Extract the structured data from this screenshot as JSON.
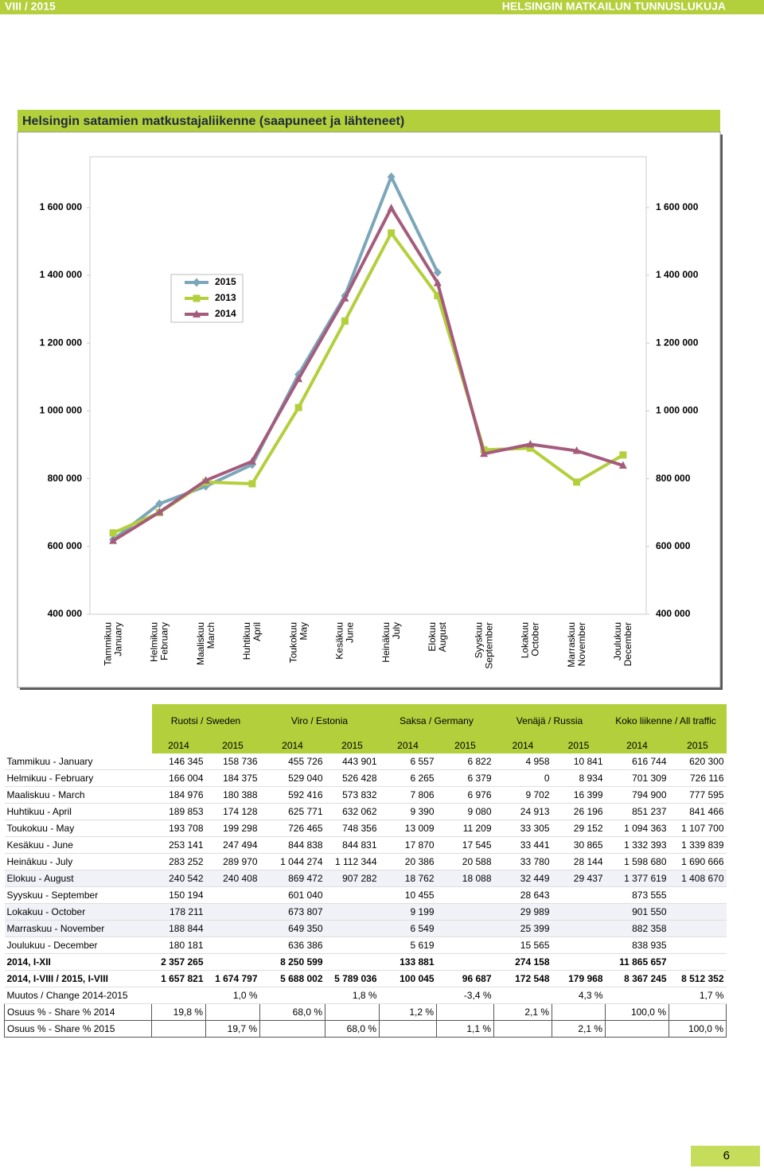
{
  "header": {
    "left": "VIII / 2015",
    "right": "HELSINGIN MATKAILUN TUNNUSLUKUJA"
  },
  "section_title": "Helsingin satamien matkustajaliikenne (saapuneet ja lähteneet)",
  "chart_data": {
    "type": "line",
    "categories": [
      [
        "Tammikuu",
        "January"
      ],
      [
        "Helmikuu",
        "February"
      ],
      [
        "Maaliskuu",
        "March"
      ],
      [
        "Huhtikuu",
        "April"
      ],
      [
        "Toukokuu",
        "May"
      ],
      [
        "Kesäkuu",
        "June"
      ],
      [
        "Heinäkuu",
        "July"
      ],
      [
        "Elokuu",
        "August"
      ],
      [
        "Syyskuu",
        "September"
      ],
      [
        "Lokakuu",
        "October"
      ],
      [
        "Marraskuu",
        "November"
      ],
      [
        "Joulukuu",
        "December"
      ]
    ],
    "series": [
      {
        "name": "2015",
        "color": "#7ba7b9",
        "marker": "diamond",
        "values": [
          620300,
          726116,
          777595,
          841466,
          1107700,
          1339839,
          1690666,
          1408670,
          null,
          null,
          null,
          null
        ]
      },
      {
        "name": "2013",
        "color": "#b3cf3c",
        "marker": "square",
        "values": [
          640000,
          700000,
          790000,
          785000,
          1010000,
          1265000,
          1525000,
          1340000,
          885000,
          890000,
          790000,
          870000
        ]
      },
      {
        "name": "2014",
        "color": "#a45c7c",
        "marker": "triangle",
        "values": [
          616744,
          701309,
          794900,
          851237,
          1094363,
          1332393,
          1598680,
          1377619,
          873555,
          901550,
          882358,
          838935
        ]
      }
    ],
    "ylim": [
      400000,
      1750000
    ],
    "yticks": [
      {
        "value": 400000,
        "label": "400 000"
      },
      {
        "value": 600000,
        "label": "600 000"
      },
      {
        "value": 800000,
        "label": "800 000"
      },
      {
        "value": 1000000,
        "label": "1 000 000"
      },
      {
        "value": 1200000,
        "label": "1 200 000"
      },
      {
        "value": 1400000,
        "label": "1 400 000"
      },
      {
        "value": 1600000,
        "label": "1 600 000"
      }
    ],
    "y2lim": [
      400000,
      1750000
    ],
    "y2ticks": [
      {
        "value": 400000,
        "label": "400 000"
      },
      {
        "value": 600000,
        "label": "600 000"
      },
      {
        "value": 800000,
        "label": "800 000"
      },
      {
        "value": 1000000,
        "label": "1 000 000"
      },
      {
        "value": 1200000,
        "label": "1 200 000"
      },
      {
        "value": 1400000,
        "label": "1 400 000"
      },
      {
        "value": 1600000,
        "label": "1 600 000"
      }
    ],
    "grid": false,
    "legend": "upper left"
  },
  "table": {
    "groups": [
      "Ruotsi / Sweden",
      "Viro / Estonia",
      "Saksa / Germany",
      "Venäjä / Russia",
      "Koko liikenne / All traffic"
    ],
    "years": [
      "2014",
      "2015",
      "2014",
      "2015",
      "2014",
      "2015",
      "2014",
      "2015",
      "2014",
      "2015"
    ],
    "rows": [
      {
        "cells": [
          "Tammikuu - January",
          "146 345",
          "158 736",
          "455 726",
          "443 901",
          "6 557",
          "6 822",
          "4 958",
          "10 841",
          "616 744",
          "620 300"
        ]
      },
      {
        "cells": [
          "Helmikuu - February",
          "166 004",
          "184 375",
          "529 040",
          "526 428",
          "6 265",
          "6 379",
          "0",
          "8 934",
          "701 309",
          "726 116"
        ]
      },
      {
        "cells": [
          "Maaliskuu - March",
          "184 976",
          "180 388",
          "592 416",
          "573 832",
          "7 806",
          "6 976",
          "9 702",
          "16 399",
          "794 900",
          "777 595"
        ]
      },
      {
        "cells": [
          "Huhtikuu - April",
          "189 853",
          "174 128",
          "625 771",
          "632 062",
          "9 390",
          "9 080",
          "24 913",
          "26 196",
          "851 237",
          "841 466"
        ]
      },
      {
        "cells": [
          "Toukokuu - May",
          "193 708",
          "199 298",
          "726 465",
          "748 356",
          "13 009",
          "11 209",
          "33 305",
          "29 152",
          "1 094 363",
          "1 107 700"
        ]
      },
      {
        "cells": [
          "Kesäkuu - June",
          "253 141",
          "247 494",
          "844 838",
          "844 831",
          "17 870",
          "17 545",
          "33 441",
          "30 865",
          "1 332 393",
          "1 339 839"
        ]
      },
      {
        "cells": [
          "Heinäkuu - July",
          "283 252",
          "289 970",
          "1 044 274",
          "1 112 344",
          "20 386",
          "20 588",
          "33 780",
          "28 144",
          "1 598 680",
          "1 690 666"
        ]
      },
      {
        "cells": [
          "Elokuu - August",
          "240 542",
          "240 408",
          "869 472",
          "907 282",
          "18 762",
          "18 088",
          "32 449",
          "29 437",
          "1 377 619",
          "1 408 670"
        ]
      },
      {
        "cells": [
          "Syyskuu - September",
          "150 194",
          null,
          "601 040",
          null,
          "10 455",
          null,
          "28 643",
          null,
          "873 555",
          null
        ]
      },
      {
        "cells": [
          "Lokakuu - October",
          "178 211",
          null,
          "673 807",
          null,
          "9 199",
          null,
          "29 989",
          null,
          "901 550",
          null
        ]
      },
      {
        "cells": [
          "Marraskuu - November",
          "188 844",
          null,
          "649 350",
          null,
          "6 549",
          null,
          "25 399",
          null,
          "882 358",
          null
        ]
      },
      {
        "cells": [
          "Joulukuu - December",
          "180 181",
          null,
          "636 386",
          null,
          "5 619",
          null,
          "15 565",
          null,
          "838 935",
          null
        ]
      },
      {
        "cells": [
          "2014, I-XII",
          "2 357 265",
          null,
          "8 250 599",
          null,
          "133 881",
          null,
          "274 158",
          null,
          "11 865 657",
          null
        ],
        "bold": true
      },
      {
        "cells": [
          "2014, I-VIII / 2015, I-VIII",
          "1 657 821",
          "1 674 797",
          "5 688 002",
          "5 789 036",
          "100 045",
          "96 687",
          "172 548",
          "179 968",
          "8 367 245",
          "8 512 352"
        ],
        "bold": true
      },
      {
        "cells": [
          "Muutos / Change  2014-2015",
          null,
          "1,0 %",
          null,
          "1,8 %",
          null,
          "-3,4 %",
          null,
          "4,3 %",
          null,
          "1,7 %"
        ]
      },
      {
        "cells": [
          "Osuus % - Share % 2014",
          "19,8 %",
          null,
          "68,0 %",
          null,
          "1,2 %",
          null,
          "2,1 %",
          null,
          "100,0 %",
          null
        ],
        "boxed": true
      },
      {
        "cells": [
          "Osuus % - Share % 2015",
          null,
          "19,7 %",
          null,
          "68,0 %",
          null,
          "1,1 %",
          null,
          "2,1 %",
          null,
          "100,0 %"
        ],
        "boxed": true
      }
    ]
  },
  "page_number": "6"
}
